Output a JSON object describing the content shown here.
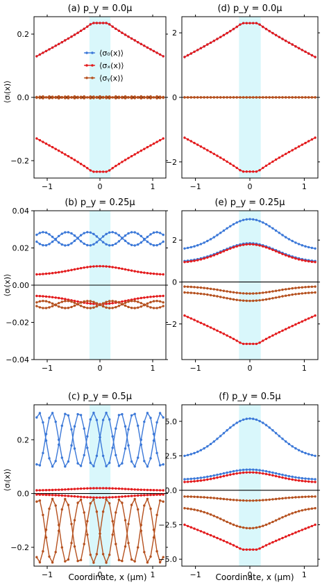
{
  "colors": {
    "sigma0": "#3b78d8",
    "sigmax": "#e31a1c",
    "sigmay": "#b5501e",
    "highlight": "#d9f7fb"
  },
  "figure": {
    "ylabel": "⟨σᵢ(x)⟩",
    "xlabel": "Coordinate, x (μm)",
    "legend": [
      "⟨σ₀(x)⟩",
      "⟨σₓ(x)⟩",
      "⟨σᵧ(x)⟩"
    ],
    "x_ticks": [
      "−1",
      "0",
      "1"
    ]
  },
  "chart_data": [
    {
      "type": "line",
      "panel": "a",
      "title": "(a) p_y = 0.0μ",
      "xlim": [
        -1.25,
        1.25
      ],
      "ylim": [
        -0.255,
        0.255
      ],
      "yticks": [
        -0.2,
        0.0,
        0.2
      ],
      "ytick_labels": [
        "−0.2",
        "0.0",
        "0.2"
      ],
      "highlight": [
        -0.2,
        0.2
      ],
      "legend_position": "upper-center",
      "series": [
        {
          "name": "⟨σ₀(x)⟩",
          "kind": "sigma0",
          "shape": "cusp",
          "amp": 0.235,
          "base": 0.13
        },
        {
          "name": "⟨σₓ(x)⟩",
          "kind": "sigmax",
          "shape": "cusp",
          "amp": 0.235,
          "base": 0.13
        },
        {
          "name": "⟨σₓ(x)⟩",
          "kind": "sigmax",
          "shape": "cusp",
          "amp": -0.235,
          "base": -0.13
        },
        {
          "name": "⟨σᵧ(x)⟩",
          "kind": "sigmay",
          "shape": "wave",
          "amp": 0.003,
          "base": 0.0,
          "freq": 20
        },
        {
          "name": "⟨σᵧ(x)⟩",
          "kind": "sigmay",
          "shape": "wave",
          "amp": -0.003,
          "base": 0.0,
          "freq": 20
        }
      ]
    },
    {
      "type": "line",
      "panel": "d",
      "title": "(d) p_y = 0.0μ",
      "xlim": [
        -1.25,
        1.25
      ],
      "ylim": [
        -2.5,
        2.5
      ],
      "yticks": [
        -2,
        0,
        2
      ],
      "ytick_labels": [
        "−2",
        "0",
        "2"
      ],
      "highlight": [
        -0.2,
        0.2
      ],
      "series": [
        {
          "name": "⟨σ₀(x)⟩",
          "kind": "sigma0",
          "shape": "cusp",
          "amp": 2.3,
          "base": 1.25
        },
        {
          "name": "⟨σₓ(x)⟩",
          "kind": "sigmax",
          "shape": "cusp",
          "amp": 2.3,
          "base": 1.25
        },
        {
          "name": "⟨σₓ(x)⟩",
          "kind": "sigmax",
          "shape": "cusp",
          "amp": -2.3,
          "base": -1.25
        },
        {
          "name": "⟨σᵧ(x)⟩",
          "kind": "sigmay",
          "shape": "flat",
          "amp": 0.0,
          "base": 0.0
        },
        {
          "name": "⟨σᵧ(x)⟩",
          "kind": "sigmay",
          "shape": "flat",
          "amp": 0.0,
          "base": 0.0
        }
      ]
    },
    {
      "type": "line",
      "panel": "b",
      "title": "(b) p_y = 0.25μ",
      "xlim": [
        -1.25,
        1.25
      ],
      "ylim": [
        -0.04,
        0.04
      ],
      "yticks": [
        -0.04,
        -0.02,
        0.0,
        0.02,
        0.04
      ],
      "ytick_labels": [
        "−0.04",
        "−0.02",
        "0.00",
        "0.02",
        "0.04"
      ],
      "highlight": [
        -0.2,
        0.2
      ],
      "series": [
        {
          "name": "⟨σ₀(x)⟩",
          "kind": "sigma0",
          "shape": "wave",
          "amp": 0.0185,
          "base": 0.0285,
          "freq": 7.4,
          "phase": -1.48
        },
        {
          "name": "⟨σ₀(x)⟩",
          "kind": "sigma0",
          "shape": "wave",
          "amp": 0.0185,
          "base": 0.0285,
          "freq": 7.4,
          "phase": 1.48
        },
        {
          "name": "⟨σₓ(x)⟩",
          "kind": "sigmax",
          "shape": "smooth",
          "amp": 0.0102,
          "base": 0.0058
        },
        {
          "name": "⟨σₓ(x)⟩",
          "kind": "sigmax",
          "shape": "smooth",
          "amp": -0.0102,
          "base": -0.0058
        },
        {
          "name": "⟨σᵧ(x)⟩",
          "kind": "sigmay",
          "shape": "wave",
          "amp": -0.0115,
          "base": -0.0085,
          "freq": 7.4,
          "phase": -1.48
        },
        {
          "name": "⟨σᵧ(x)⟩",
          "kind": "sigmay",
          "shape": "wave",
          "amp": -0.0115,
          "base": -0.0085,
          "freq": 7.4,
          "phase": 1.48
        }
      ]
    },
    {
      "type": "line",
      "panel": "e",
      "title": "(e) p_y = 0.25μ",
      "xlim": [
        -1.25,
        1.25
      ],
      "ylim": [
        -3.7,
        3.4
      ],
      "yticks": [
        -2,
        0,
        2
      ],
      "ytick_labels": [
        "−2",
        "0",
        "2"
      ],
      "highlight": [
        -0.2,
        0.2
      ],
      "series": [
        {
          "name": "⟨σ₀(x)⟩",
          "kind": "sigma0",
          "shape": "smooth",
          "amp": 3.0,
          "base": 1.6
        },
        {
          "name": "⟨σ₀(x)⟩",
          "kind": "sigma0",
          "shape": "smooth",
          "amp": 1.85,
          "base": 1.0
        },
        {
          "name": "⟨σₓ(x)⟩",
          "kind": "sigmax",
          "shape": "smooth",
          "amp": 1.8,
          "base": 0.95
        },
        {
          "name": "⟨σₓ(x)⟩",
          "kind": "sigmax",
          "shape": "cusp",
          "amp": -2.95,
          "base": -1.6
        },
        {
          "name": "⟨σᵧ(x)⟩",
          "kind": "sigmay",
          "shape": "smooth",
          "amp": -0.55,
          "base": -0.22
        },
        {
          "name": "⟨σᵧ(x)⟩",
          "kind": "sigmay",
          "shape": "smooth",
          "amp": -0.9,
          "base": -0.5
        }
      ]
    },
    {
      "type": "line",
      "panel": "c",
      "title": "(c) p_y = 0.5μ",
      "xlim": [
        -1.25,
        1.25
      ],
      "ylim": [
        -0.27,
        0.33
      ],
      "yticks": [
        -0.2,
        0.0,
        0.2
      ],
      "ytick_labels": [
        "−0.2",
        "0.0",
        "0.2"
      ],
      "highlight": [
        -0.2,
        0.2
      ],
      "series": [
        {
          "name": "⟨σ₀(x)⟩",
          "kind": "sigma0",
          "shape": "wave",
          "amp": 0.29,
          "base": 0.1,
          "freq": 12.2,
          "phase": -1.48
        },
        {
          "name": "⟨σ₀(x)⟩",
          "kind": "sigma0",
          "shape": "wave",
          "amp": 0.29,
          "base": 0.1,
          "freq": 12.2,
          "phase": 1.48
        },
        {
          "name": "⟨σₓ(x)⟩",
          "kind": "sigmax",
          "shape": "smooth",
          "amp": 0.02,
          "base": 0.012
        },
        {
          "name": "⟨σₓ(x)⟩",
          "kind": "sigmax",
          "shape": "smooth",
          "amp": -0.015,
          "base": -0.004
        },
        {
          "name": "⟨σᵧ(x)⟩",
          "kind": "sigmay",
          "shape": "wave",
          "amp": -0.255,
          "base": -0.02,
          "freq": 12.2,
          "phase": -1.48
        },
        {
          "name": "⟨σᵧ(x)⟩",
          "kind": "sigmay",
          "shape": "wave",
          "amp": -0.255,
          "base": -0.02,
          "freq": 12.2,
          "phase": 1.48
        }
      ]
    },
    {
      "type": "line",
      "panel": "f",
      "title": "(f) p_y = 0.5μ",
      "xlim": [
        -1.25,
        1.25
      ],
      "ylim": [
        -5.5,
        6.2
      ],
      "yticks": [
        -5.0,
        -2.5,
        0.0,
        2.5,
        5.0
      ],
      "ytick_labels": [
        "−5.0",
        "−2.5",
        "0.0",
        "2.5",
        "5.0"
      ],
      "highlight": [
        -0.2,
        0.2
      ],
      "series": [
        {
          "name": "⟨σ₀(x)⟩",
          "kind": "sigma0",
          "shape": "smooth",
          "amp": 5.2,
          "base": 2.5
        },
        {
          "name": "⟨σ₀(x)⟩",
          "kind": "sigma0",
          "shape": "smooth",
          "amp": 1.5,
          "base": 0.8
        },
        {
          "name": "⟨σₓ(x)⟩",
          "kind": "sigmax",
          "shape": "smooth",
          "amp": 1.3,
          "base": 0.6
        },
        {
          "name": "⟨σₓ(x)⟩",
          "kind": "sigmax",
          "shape": "cusp",
          "amp": -4.3,
          "base": -2.5
        },
        {
          "name": "⟨σᵧ(x)⟩",
          "kind": "sigmay",
          "shape": "smooth",
          "amp": -0.75,
          "base": -0.45
        },
        {
          "name": "⟨σᵧ(x)⟩",
          "kind": "sigmay",
          "shape": "smooth",
          "amp": -2.75,
          "base": -1.3
        }
      ]
    }
  ]
}
